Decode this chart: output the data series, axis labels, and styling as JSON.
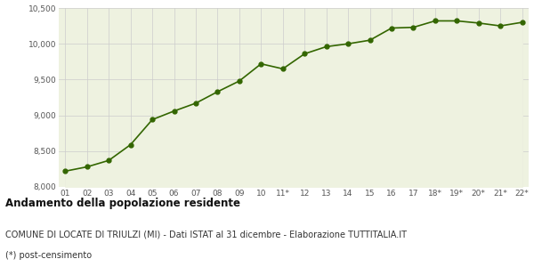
{
  "labels": [
    "01",
    "02",
    "03",
    "04",
    "05",
    "06",
    "07",
    "08",
    "09",
    "10",
    "11*",
    "12",
    "13",
    "14",
    "15",
    "16",
    "17",
    "18*",
    "19*",
    "20*",
    "21*",
    "22*"
  ],
  "values": [
    8220,
    8280,
    8370,
    8590,
    8940,
    9060,
    9170,
    9330,
    9480,
    9720,
    9650,
    9860,
    9960,
    10000,
    10050,
    10220,
    10230,
    10320,
    10320,
    10290,
    10250,
    10300
  ],
  "line_color": "#336600",
  "fill_color": "#eef2e0",
  "marker_color": "#336600",
  "bg_color": "#ffffff",
  "grid_color": "#cccccc",
  "ylim": [
    8000,
    10500
  ],
  "yticks": [
    8000,
    8500,
    9000,
    9500,
    10000,
    10500
  ],
  "title": "Andamento della popolazione residente",
  "subtitle": "COMUNE DI LOCATE DI TRIULZI (MI) - Dati ISTAT al 31 dicembre - Elaborazione TUTTITALIA.IT",
  "footnote": "(*) post-censimento",
  "title_fontsize": 8.5,
  "subtitle_fontsize": 7.0,
  "footnote_fontsize": 7.0
}
